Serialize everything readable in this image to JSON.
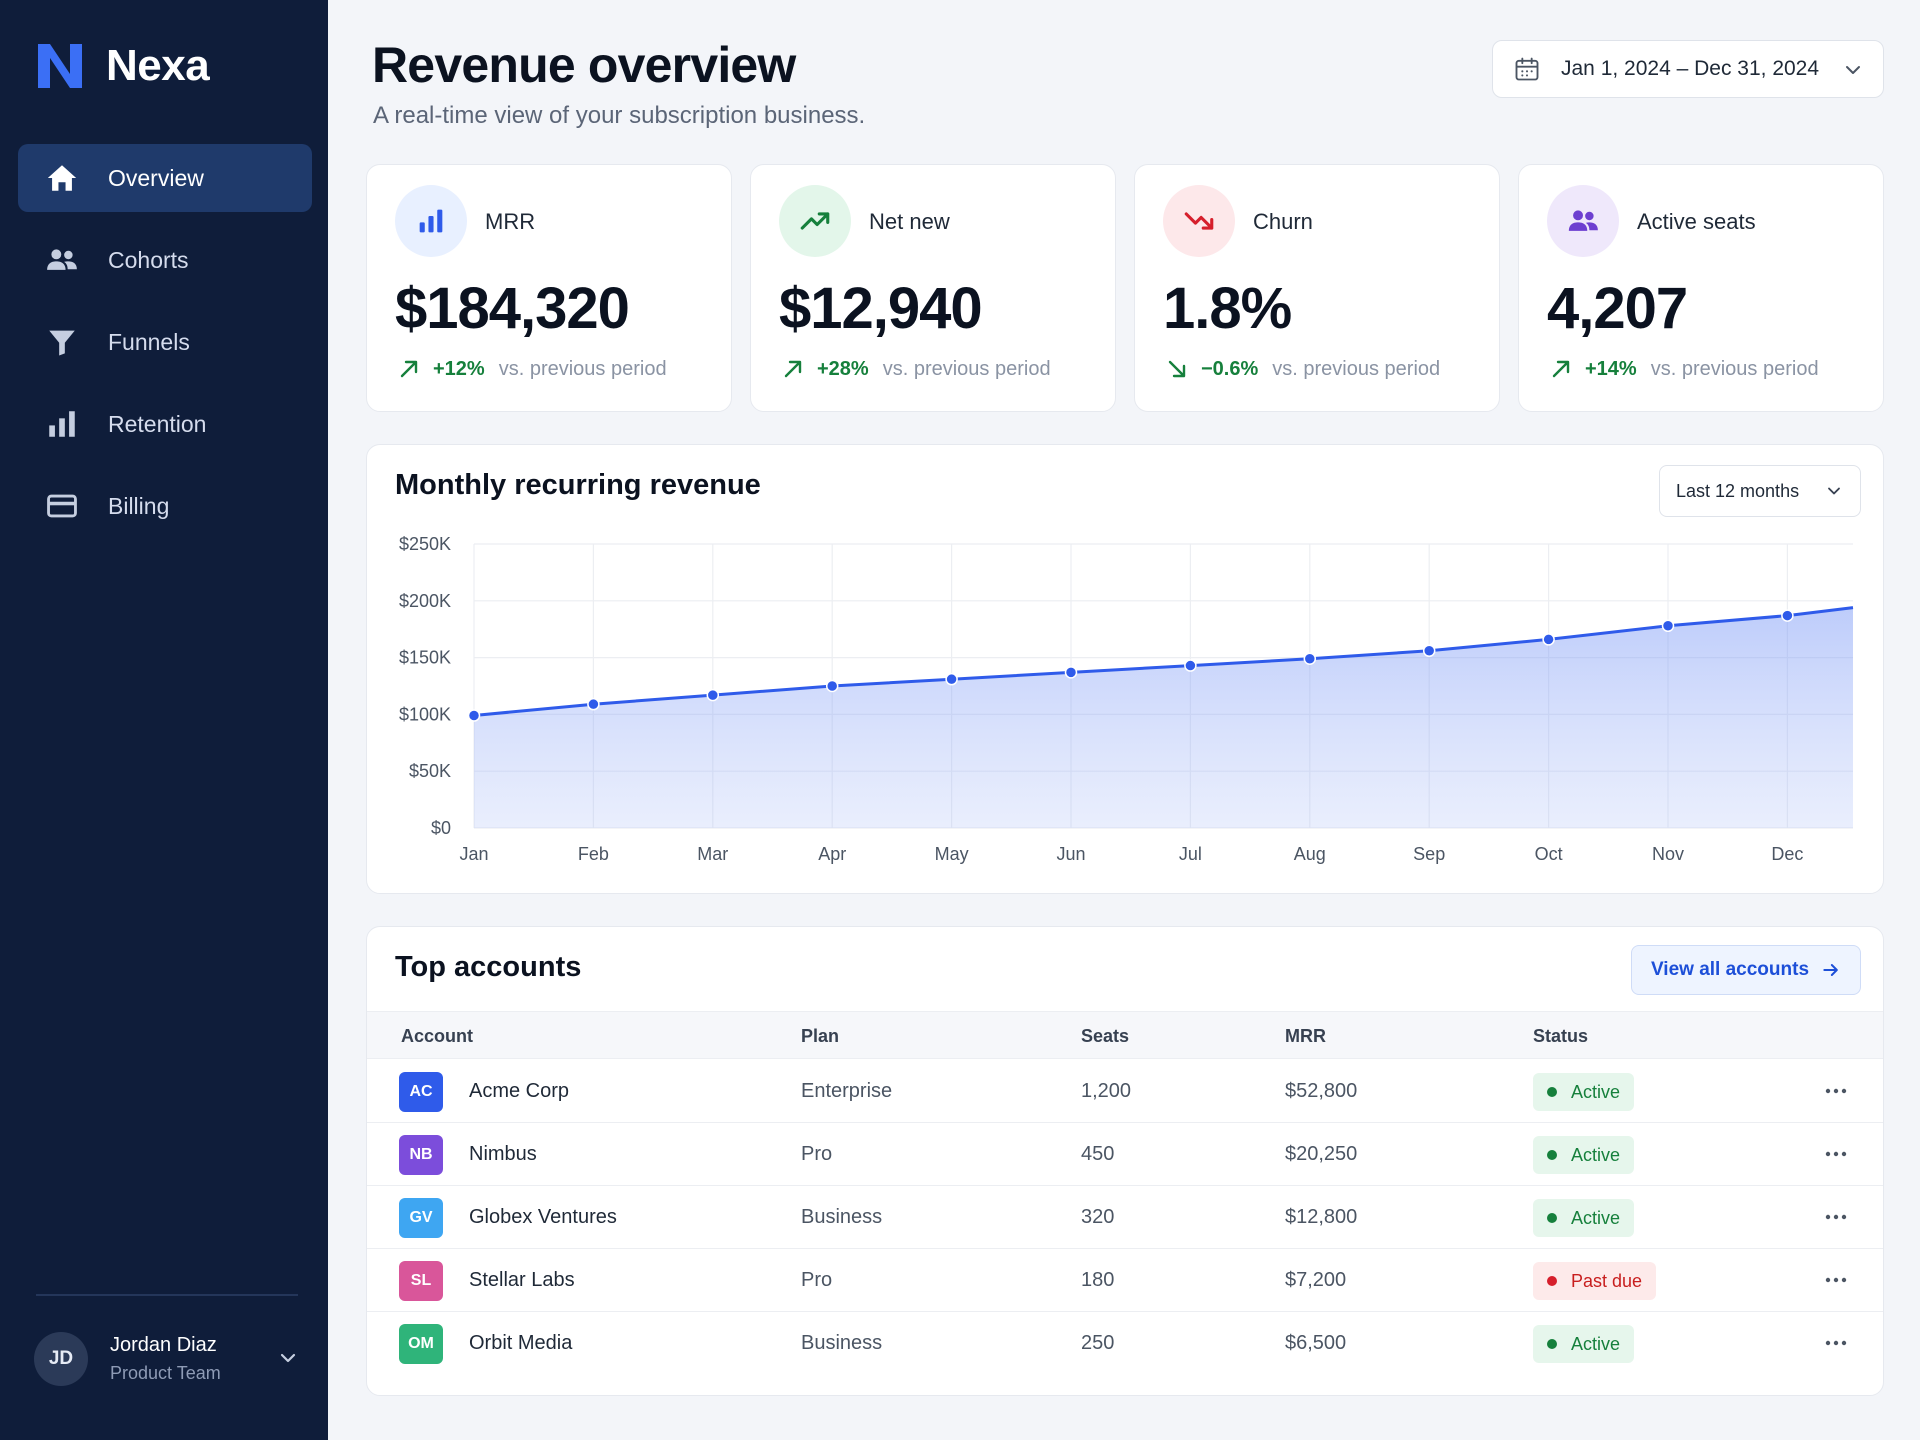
{
  "brand": {
    "name": "Nexa",
    "accent": "#3b82f6"
  },
  "sidebar": {
    "items": [
      {
        "label": "Overview",
        "icon": "home-icon",
        "active": true
      },
      {
        "label": "Cohorts",
        "icon": "users-icon"
      },
      {
        "label": "Funnels",
        "icon": "filter-icon"
      },
      {
        "label": "Retention",
        "icon": "bar-chart-icon"
      },
      {
        "label": "Billing",
        "icon": "credit-card-icon"
      }
    ],
    "user": {
      "initials": "JD",
      "name": "Jordan Diaz",
      "team": "Product Team"
    }
  },
  "header": {
    "title": "Revenue overview",
    "subtitle": "A real-time view of your subscription business.",
    "date_range": "Jan 1, 2024 – Dec 31, 2024"
  },
  "kpis": [
    {
      "label": "MRR",
      "value": "$184,320",
      "delta": "+12%",
      "direction": "up",
      "vs": "vs. previous period",
      "icon": "bar-chart-icon"
    },
    {
      "label": "Net new",
      "value": "$12,940",
      "delta": "+28%",
      "direction": "up",
      "vs": "vs. previous period",
      "icon": "trending-up-icon"
    },
    {
      "label": "Churn",
      "value": "1.8%",
      "delta": "−0.6%",
      "direction": "down",
      "vs": "vs. previous period",
      "icon": "trending-down-icon"
    },
    {
      "label": "Active seats",
      "value": "4,207",
      "delta": "+14%",
      "direction": "up",
      "vs": "vs. previous period",
      "icon": "users-icon"
    }
  ],
  "chart": {
    "title": "Monthly recurring revenue",
    "range_label": "Last 12 months"
  },
  "chart_data": {
    "type": "area",
    "title": "Monthly recurring revenue",
    "categories": [
      "Jan",
      "Feb",
      "Mar",
      "Apr",
      "May",
      "Jun",
      "Jul",
      "Aug",
      "Sep",
      "Oct",
      "Nov",
      "Dec"
    ],
    "values": [
      99,
      109,
      117,
      125,
      131,
      137,
      143,
      149,
      156,
      166,
      178,
      187
    ],
    "end_value": 194,
    "unit": "K USD",
    "ylim": [
      0,
      250
    ],
    "yticks": [
      0,
      50,
      100,
      150,
      200,
      250
    ],
    "ytick_labels": [
      "$0",
      "$50K",
      "$100K",
      "$150K",
      "$200K",
      "$250K"
    ],
    "grid": true,
    "color": "#2f5bea"
  },
  "table": {
    "title": "Top accounts",
    "view_all": "View all accounts",
    "columns": [
      "Account",
      "Plan",
      "Seats",
      "MRR",
      "Status"
    ],
    "rows": [
      {
        "initials": "AC",
        "name": "Acme Corp",
        "plan": "Enterprise",
        "seats": "1,200",
        "mrr": "$52,800",
        "status": "Active",
        "color": "#2f5bea"
      },
      {
        "initials": "NB",
        "name": "Nimbus",
        "plan": "Pro",
        "seats": "450",
        "mrr": "$20,250",
        "status": "Active",
        "color": "#7c4ddb"
      },
      {
        "initials": "GV",
        "name": "Globex Ventures",
        "plan": "Business",
        "seats": "320",
        "mrr": "$12,800",
        "status": "Active",
        "color": "#3ea6f2"
      },
      {
        "initials": "SL",
        "name": "Stellar Labs",
        "plan": "Pro",
        "seats": "180",
        "mrr": "$7,200",
        "status": "Past due",
        "color": "#d9569a"
      },
      {
        "initials": "OM",
        "name": "Orbit Media",
        "plan": "Business",
        "seats": "250",
        "mrr": "$6,500",
        "status": "Active",
        "color": "#2fb47a"
      }
    ]
  }
}
